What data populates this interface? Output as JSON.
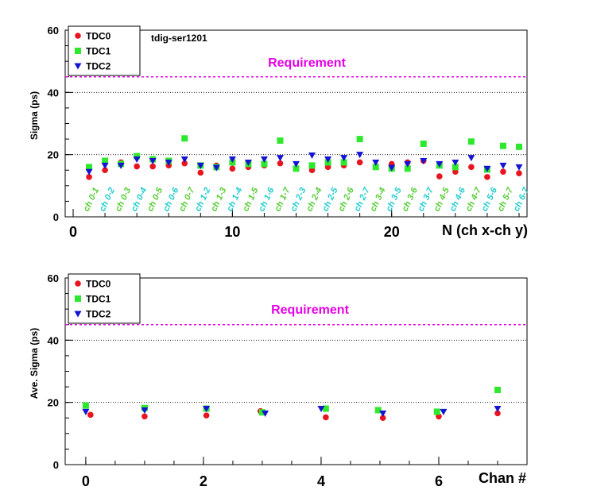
{
  "colors": {
    "TDC0": "#e8141e",
    "TDC1": "#2ee82e",
    "TDC2": "#1414d2",
    "requirement": "#e600e6",
    "label_green": "#55cc33",
    "label_cyan": "#22cccc"
  },
  "chart_data": [
    {
      "type": "scatter",
      "annotation": "tdig-ser1201",
      "requirement_label": "Requirement",
      "requirement_value": 45,
      "xlabel": "N (ch x-ch y)",
      "ylabel": "Sigma (ps)",
      "xlim": [
        -0.5,
        28.5
      ],
      "ylim": [
        0,
        60
      ],
      "yticks": [
        "0",
        "20",
        "40",
        "60"
      ],
      "xticks": [
        "0",
        "10",
        "20"
      ],
      "xtick_values": [
        0,
        10,
        20
      ],
      "grid": "horizontal dotted",
      "legend_position": "top-left",
      "categories": [
        "ch 0-1",
        "ch 0-2",
        "ch 0-3",
        "ch 0-4",
        "ch 0-5",
        "ch 0-6",
        "ch 0-7",
        "ch 1-2",
        "ch 1-3",
        "ch 1-4",
        "ch 1-5",
        "ch 1-6",
        "ch 1-7",
        "ch 2-3",
        "ch 2-4",
        "ch 2-5",
        "ch 2-6",
        "ch 2-7",
        "ch 3-4",
        "ch 3-5",
        "ch 3-6",
        "ch 3-7",
        "ch 4-5",
        "ch 4-6",
        "ch 4-7",
        "ch 5-6",
        "ch 5-7",
        "ch 6-7"
      ],
      "x": [
        1,
        2,
        3,
        4,
        5,
        6,
        7,
        8,
        9,
        10,
        11,
        12,
        13,
        14,
        15,
        16,
        17,
        18,
        19,
        20,
        21,
        22,
        23,
        24,
        25,
        26,
        27,
        28
      ],
      "series": [
        {
          "name": "TDC0",
          "marker": "circle",
          "values": [
            12.8,
            15.0,
            17.5,
            16.2,
            16.2,
            16.5,
            17.2,
            14.2,
            16.5,
            15.5,
            16.0,
            16.5,
            17.2,
            15.5,
            15.0,
            16.0,
            16.5,
            17.5,
            16.2,
            17.0,
            17.5,
            18.0,
            13.0,
            14.5,
            16.0,
            12.8,
            14.5,
            14.0
          ]
        },
        {
          "name": "TDC1",
          "marker": "square",
          "values": [
            16.0,
            18.0,
            17.0,
            19.5,
            18.5,
            18.0,
            25.2,
            16.5,
            16.0,
            17.5,
            17.0,
            17.0,
            24.5,
            15.5,
            16.5,
            17.5,
            17.5,
            25.0,
            16.0,
            15.5,
            15.5,
            23.5,
            16.5,
            16.0,
            24.2,
            15.2,
            22.8,
            22.5
          ]
        },
        {
          "name": "TDC2",
          "marker": "triangle-down",
          "values": [
            14.5,
            16.5,
            16.5,
            18.5,
            18.0,
            17.5,
            18.5,
            16.5,
            15.8,
            18.5,
            17.5,
            18.5,
            19.0,
            17.0,
            19.8,
            18.5,
            19.0,
            20.0,
            17.5,
            15.8,
            17.0,
            18.0,
            17.0,
            17.5,
            19.0,
            15.5,
            16.5,
            16.0
          ]
        }
      ]
    },
    {
      "type": "scatter",
      "requirement_label": "Requirement",
      "requirement_value": 45,
      "xlabel": "Chan #",
      "ylabel": "Ave. Sigma (ps)",
      "xlim": [
        -0.35,
        7.5
      ],
      "ylim": [
        0,
        60
      ],
      "yticks": [
        "0",
        "20",
        "40",
        "60"
      ],
      "xticks": [
        "0",
        "2",
        "4",
        "6"
      ],
      "xtick_values": [
        0,
        2,
        4,
        6
      ],
      "grid": "horizontal dotted",
      "legend_position": "top-left",
      "series": [
        {
          "name": "TDC0",
          "marker": "circle",
          "x": [
            0.08,
            1.0,
            2.05,
            2.97,
            4.08,
            5.05,
            6.0,
            7.0
          ],
          "values": [
            16.0,
            15.5,
            15.8,
            17.2,
            15.2,
            15.0,
            15.5,
            16.5
          ]
        },
        {
          "name": "TDC1",
          "marker": "square",
          "x": [
            0.0,
            1.0,
            2.05,
            3.0,
            4.08,
            4.97,
            5.97,
            7.0
          ],
          "values": [
            19.0,
            18.2,
            18.0,
            16.8,
            18.0,
            17.5,
            17.0,
            24.0
          ]
        },
        {
          "name": "TDC2",
          "marker": "triangle-down",
          "x": [
            0.0,
            1.0,
            2.05,
            3.05,
            4.0,
            5.05,
            6.08,
            7.0
          ],
          "values": [
            17.0,
            17.5,
            18.0,
            16.5,
            18.0,
            16.5,
            17.0,
            18.0
          ]
        }
      ]
    }
  ]
}
